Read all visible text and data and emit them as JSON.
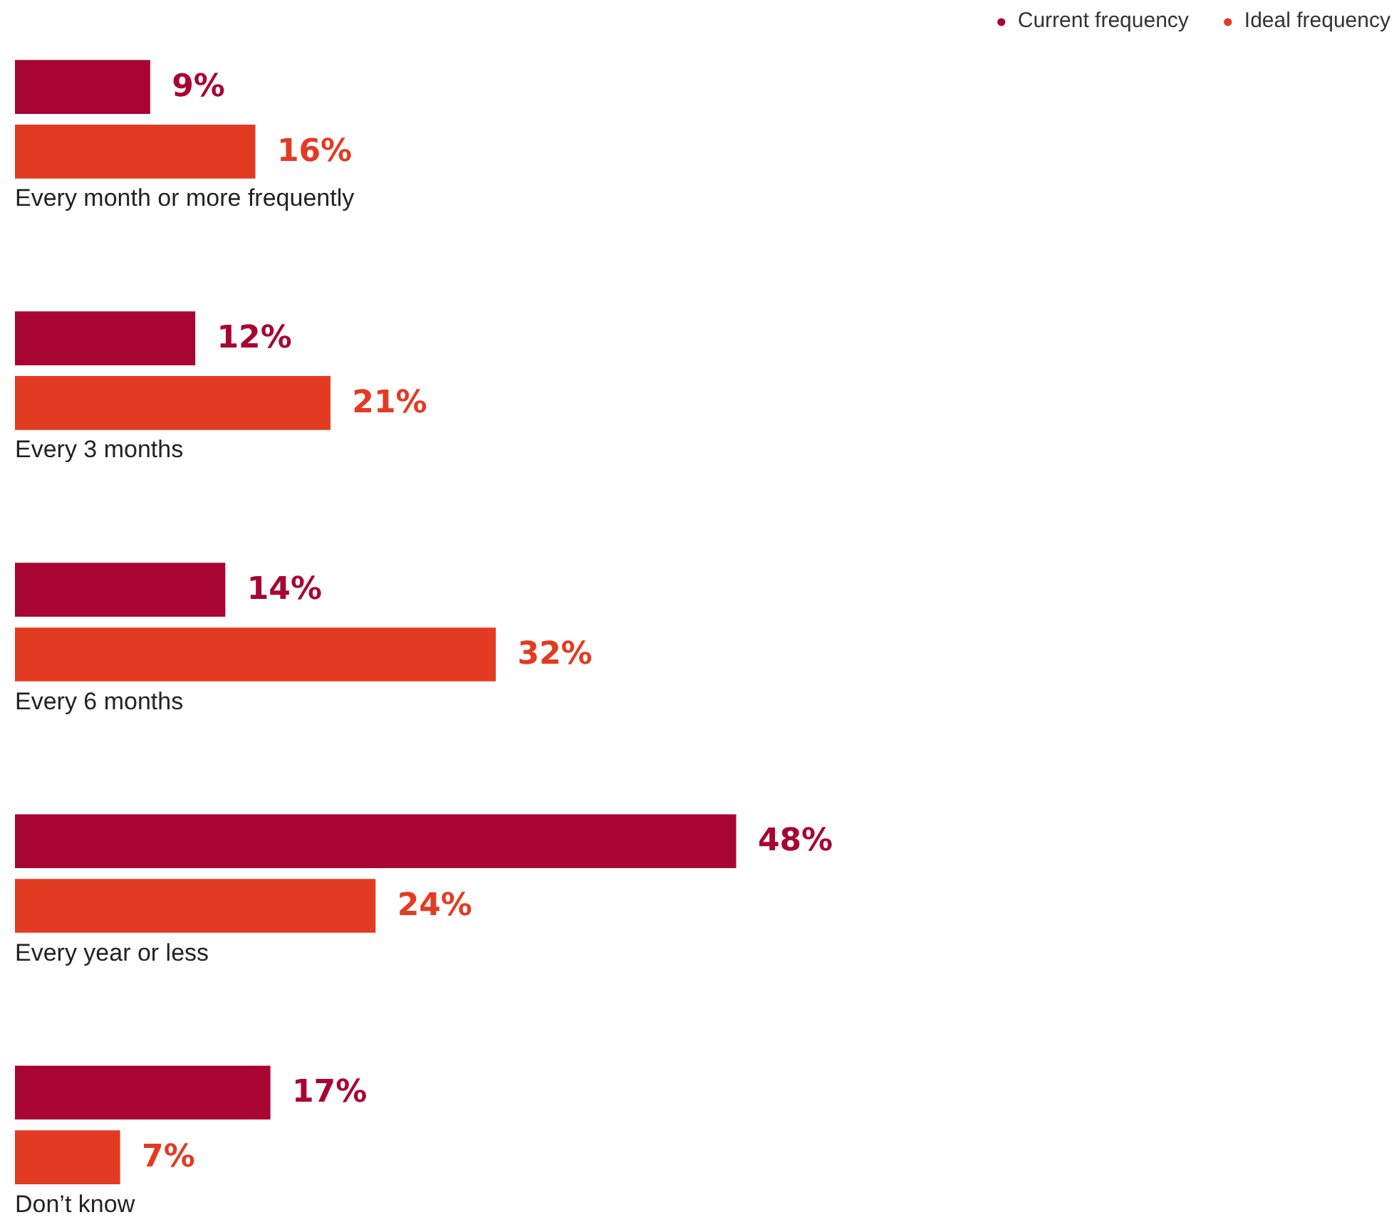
{
  "chart_data": {
    "type": "bar",
    "orientation": "horizontal",
    "categories": [
      "Every month or more frequently",
      "Every 3 months",
      "Every 6 months",
      "Every year or less",
      "Don’t know"
    ],
    "series": [
      {
        "name": "Current frequency",
        "color": "#a80532",
        "values": [
          9,
          12,
          14,
          48,
          17
        ],
        "value_labels": [
          "9%",
          "12%",
          "14%",
          "48%",
          "17%"
        ]
      },
      {
        "name": "Ideal frequency",
        "color": "#e33b22",
        "values": [
          16,
          21,
          32,
          24,
          7
        ],
        "value_labels": [
          "16%",
          "21%",
          "32%",
          "24%",
          "7%"
        ]
      }
    ],
    "legend": "top right",
    "tick_labels": false,
    "grid": false
  }
}
